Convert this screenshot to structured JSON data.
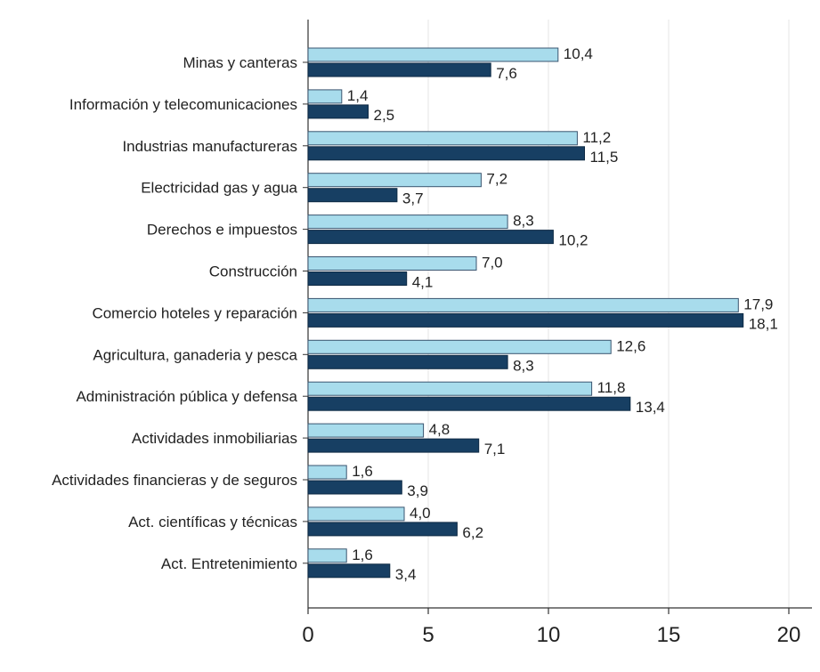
{
  "chart_data": {
    "type": "bar",
    "orientation": "horizontal",
    "categories": [
      "Minas y canteras",
      "Información y telecomunicaciones",
      "Industrias manufactureras",
      "Electricidad gas y agua",
      "Derechos e impuestos",
      "Construcción",
      "Comercio hoteles y reparación",
      "Agricultura, ganaderia y pesca",
      "Administración pública y defensa",
      "Actividades inmobiliarias",
      "Actividades financieras y de seguros",
      "Act. científicas y técnicas",
      "Act. Entretenimiento"
    ],
    "series": [
      {
        "values": [
          10.4,
          1.4,
          11.2,
          7.2,
          8.3,
          7.0,
          17.9,
          12.6,
          11.8,
          4.8,
          1.6,
          4.0,
          1.6
        ],
        "labels": [
          "10,4",
          "1,4",
          "11,2",
          "7,2",
          "8,3",
          "7,0",
          "17,9",
          "12,6",
          "11,8",
          "4,8",
          "1,6",
          "4,0",
          "1,6"
        ],
        "color": "#a8dcec"
      },
      {
        "values": [
          7.6,
          2.5,
          11.5,
          3.7,
          10.2,
          4.1,
          18.1,
          8.3,
          13.4,
          7.1,
          3.9,
          6.2,
          3.4
        ],
        "labels": [
          "7,6",
          "2,5",
          "11,5",
          "3,7",
          "10,2",
          "4,1",
          "18,1",
          "8,3",
          "13,4",
          "7,1",
          "3,9",
          "6,2",
          "3,4"
        ],
        "color": "#173f63"
      }
    ],
    "xlim": [
      0,
      20
    ],
    "xticks": [
      "0",
      "5",
      "10",
      "15",
      "20"
    ],
    "grid": "vertical",
    "title": "",
    "xlabel": "",
    "ylabel": ""
  }
}
